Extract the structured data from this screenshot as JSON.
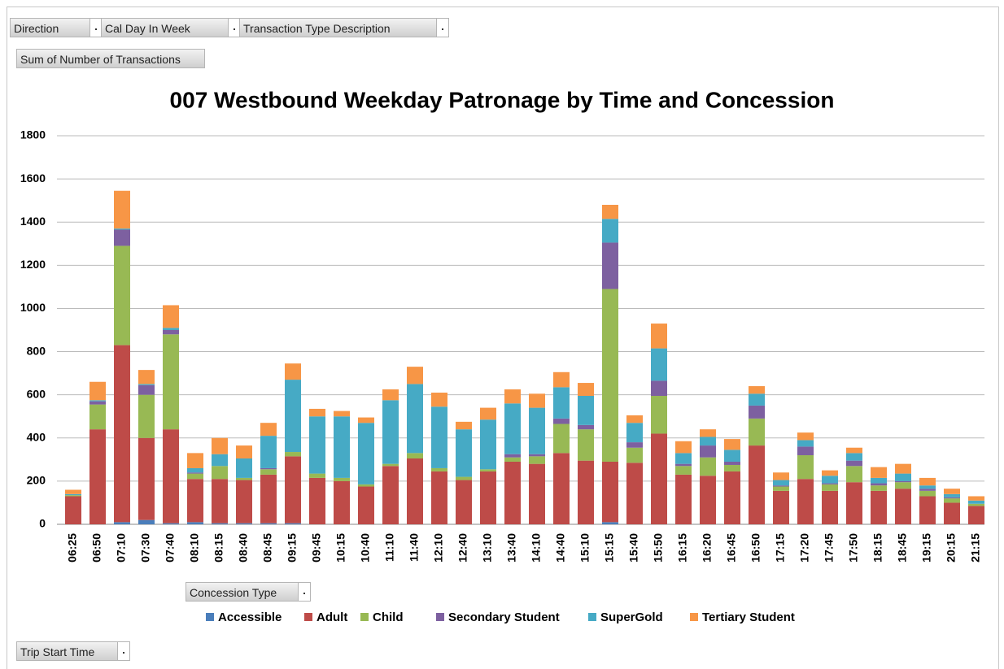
{
  "filters": [
    "Direction",
    "Cal Day In Week",
    "Transaction Type Description"
  ],
  "value_field": "Sum of Number of Transactions",
  "legend_field": "Concession Type",
  "axis_field": "Trip Start Time",
  "chart_data": {
    "type": "stacked_bar",
    "title": "007 Westbound Weekday Patronage by Time and Concession",
    "categories": [
      "06:25",
      "06:50",
      "07:10",
      "07:30",
      "07:40",
      "08:10",
      "08:15",
      "08:40",
      "08:45",
      "09:15",
      "09:45",
      "10:15",
      "10:40",
      "11:10",
      "11:40",
      "12:10",
      "12:40",
      "13:10",
      "13:40",
      "14:10",
      "14:40",
      "15:10",
      "15:15",
      "15:40",
      "15:50",
      "16:15",
      "16:20",
      "16:45",
      "16:50",
      "17:15",
      "17:20",
      "17:45",
      "17:50",
      "18:15",
      "18:45",
      "19:15",
      "20:15",
      "21:15"
    ],
    "series": [
      {
        "name": "Accessible",
        "color": "#4a7ebb",
        "values": [
          0,
          0,
          10,
          20,
          5,
          10,
          5,
          5,
          5,
          5,
          0,
          0,
          0,
          0,
          0,
          0,
          0,
          0,
          0,
          0,
          0,
          0,
          10,
          0,
          0,
          0,
          0,
          0,
          0,
          0,
          0,
          0,
          0,
          0,
          0,
          0,
          0,
          0
        ]
      },
      {
        "name": "Adult",
        "color": "#be4b48",
        "values": [
          130,
          440,
          820,
          380,
          435,
          200,
          205,
          200,
          225,
          310,
          215,
          200,
          175,
          270,
          305,
          245,
          205,
          245,
          290,
          280,
          330,
          295,
          280,
          285,
          420,
          230,
          225,
          245,
          365,
          155,
          210,
          155,
          195,
          155,
          165,
          130,
          100,
          85
        ]
      },
      {
        "name": "Child",
        "color": "#98b954",
        "values": [
          5,
          115,
          460,
          200,
          440,
          25,
          60,
          10,
          25,
          20,
          20,
          15,
          10,
          10,
          25,
          15,
          15,
          10,
          20,
          35,
          135,
          145,
          800,
          70,
          175,
          40,
          85,
          30,
          125,
          20,
          110,
          30,
          75,
          25,
          30,
          25,
          20,
          10
        ]
      },
      {
        "name": "Secondary Student",
        "color": "#7d60a0",
        "values": [
          0,
          15,
          75,
          45,
          20,
          5,
          0,
          0,
          5,
          0,
          0,
          0,
          0,
          0,
          0,
          0,
          0,
          0,
          15,
          10,
          25,
          20,
          215,
          25,
          70,
          10,
          55,
          15,
          60,
          5,
          40,
          5,
          25,
          10,
          5,
          10,
          5,
          0
        ]
      },
      {
        "name": "SuperGold",
        "color": "#46aac5",
        "values": [
          5,
          5,
          5,
          5,
          10,
          20,
          55,
          90,
          150,
          335,
          265,
          285,
          285,
          295,
          320,
          285,
          220,
          230,
          235,
          215,
          145,
          135,
          110,
          90,
          150,
          50,
          40,
          55,
          55,
          25,
          30,
          35,
          35,
          25,
          35,
          15,
          15,
          15
        ]
      },
      {
        "name": "Tertiary Student",
        "color": "#f79646",
        "values": [
          20,
          85,
          175,
          65,
          105,
          70,
          75,
          60,
          60,
          75,
          35,
          25,
          25,
          50,
          80,
          65,
          35,
          55,
          65,
          65,
          70,
          60,
          65,
          35,
          115,
          55,
          35,
          50,
          35,
          35,
          35,
          25,
          25,
          50,
          45,
          35,
          25,
          20
        ]
      }
    ],
    "ylim": [
      0,
      1800
    ],
    "yticks": [
      0,
      200,
      400,
      600,
      800,
      1000,
      1200,
      1400,
      1600,
      1800
    ],
    "grid": true,
    "legend": "bottom"
  }
}
